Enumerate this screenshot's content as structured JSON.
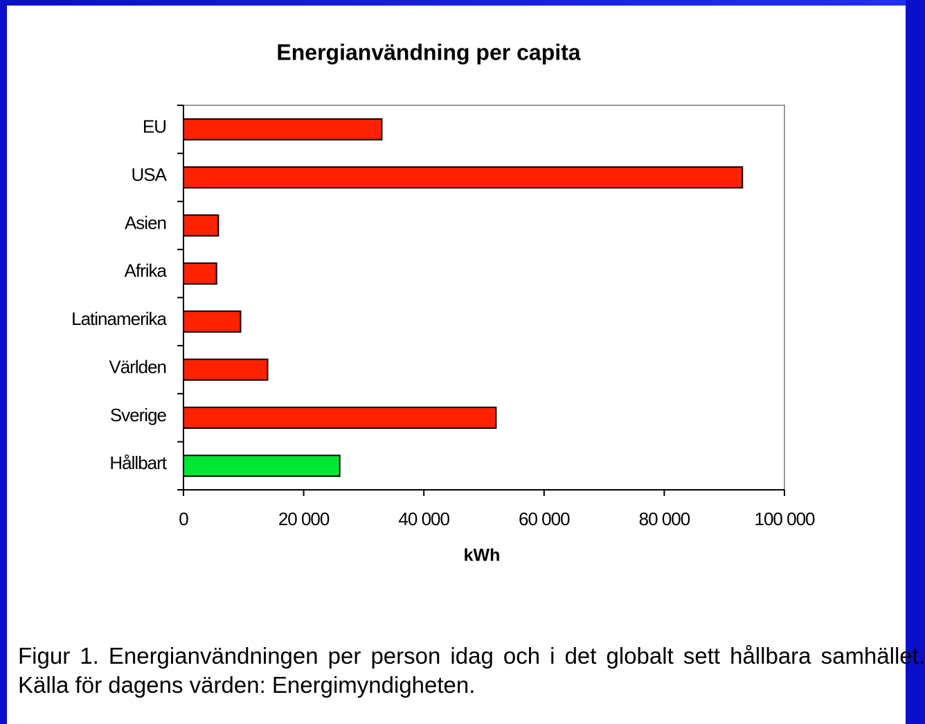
{
  "chart_data": {
    "type": "bar",
    "orientation": "horizontal",
    "title": "Energianvändning per capita",
    "x_label": "kWh",
    "categories": [
      "EU",
      "USA",
      "Asien",
      "Afrika",
      "Latinamerika",
      "Världen",
      "Sverige",
      "Hållbart"
    ],
    "values": [
      33000,
      93000,
      5800,
      5500,
      9500,
      14000,
      52000,
      26000
    ],
    "colors": [
      "#ff2200",
      "#ff2200",
      "#ff2200",
      "#ff2200",
      "#ff2200",
      "#ff2200",
      "#ff2200",
      "#00e635"
    ],
    "xlim": [
      0,
      100000
    ],
    "xticks": [
      0,
      {
        "value": 20000,
        "label": "20 000"
      },
      {
        "value": 40000,
        "label": "40 000"
      },
      {
        "value": 60000,
        "label": "60 000"
      },
      {
        "value": 80000,
        "label": "80 000"
      },
      {
        "value": 100000,
        "label": "100 000"
      }
    ],
    "grid": false
  },
  "caption": "Figur 1. Energianvändningen per person idag och i det globalt sett hållbara samhället. Källa för dagens värden: Energimyndigheten."
}
